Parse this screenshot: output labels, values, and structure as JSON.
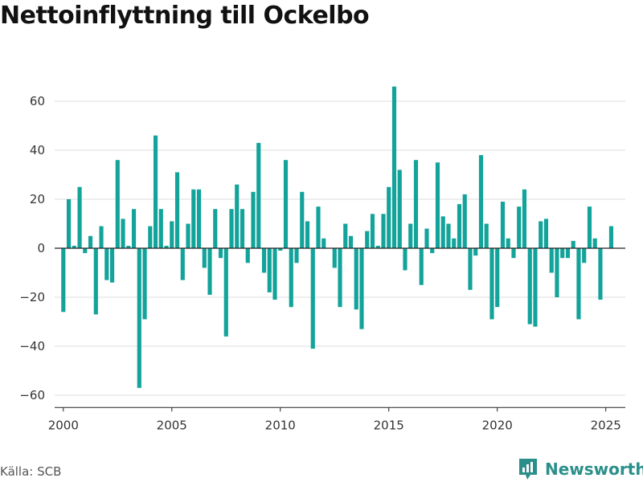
{
  "title": "Nettoinflyttning till Ockelbo",
  "source": "Källa: SCB",
  "brand": "Newsworthy",
  "colors": {
    "bar": "#12a39a",
    "grid": "#dddddd",
    "zero": "#222222",
    "brand": "#2a8f8a"
  },
  "chart_data": {
    "type": "bar",
    "title": "Nettoinflyttning till Ockelbo",
    "xlabel": "",
    "ylabel": "",
    "ylim": [
      -65,
      72
    ],
    "xlim": [
      1999.6,
      2025.9
    ],
    "yticks": [
      -60,
      -40,
      -20,
      0,
      20,
      40,
      60
    ],
    "ytick_labels": [
      "−60",
      "−40",
      "−20",
      "0",
      "20",
      "40",
      "60"
    ],
    "xticks": [
      2000,
      2005,
      2010,
      2015,
      2020,
      2025
    ],
    "xtick_labels": [
      "2000",
      "2005",
      "2010",
      "2015",
      "2020",
      "2025"
    ],
    "grid": true,
    "series": [
      {
        "x": [
          2000.0,
          2000.25,
          2000.5,
          2000.75,
          2001.0,
          2001.25,
          2001.5,
          2001.75,
          2002.0,
          2002.25,
          2002.5,
          2002.75,
          2003.0,
          2003.25,
          2003.5,
          2003.75,
          2004.0,
          2004.25,
          2004.5,
          2004.75,
          2005.0,
          2005.25,
          2005.5,
          2005.75,
          2006.0,
          2006.25,
          2006.5,
          2006.75,
          2007.0,
          2007.25,
          2007.5,
          2007.75,
          2008.0,
          2008.25,
          2008.5,
          2008.75,
          2009.0,
          2009.25,
          2009.5,
          2009.75,
          2010.0,
          2010.25,
          2010.5,
          2010.75,
          2011.0,
          2011.25,
          2011.5,
          2011.75,
          2012.0,
          2012.25,
          2012.5,
          2012.75,
          2013.0,
          2013.25,
          2013.5,
          2013.75,
          2014.0,
          2014.25,
          2014.5,
          2014.75,
          2015.0,
          2015.25,
          2015.5,
          2015.75,
          2016.0,
          2016.25,
          2016.5,
          2016.75,
          2017.0,
          2017.25,
          2017.5,
          2017.75,
          2018.0,
          2018.25,
          2018.5,
          2018.75,
          2019.0,
          2019.25,
          2019.5,
          2019.75,
          2020.0,
          2020.25,
          2020.5,
          2020.75,
          2021.0,
          2021.25,
          2021.5,
          2021.75,
          2022.0,
          2022.25,
          2022.5,
          2022.75,
          2023.0,
          2023.25,
          2023.5,
          2023.75,
          2024.0,
          2024.25,
          2024.5,
          2024.75,
          2025.0,
          2025.25
        ],
        "values": [
          -26,
          20,
          1,
          25,
          -2,
          5,
          -27,
          9,
          -13,
          -14,
          36,
          12,
          1,
          16,
          -57,
          -29,
          9,
          46,
          16,
          1,
          11,
          31,
          -13,
          10,
          24,
          24,
          -8,
          -19,
          16,
          -4,
          -36,
          16,
          26,
          16,
          -6,
          23,
          43,
          -10,
          -18,
          -21,
          -1,
          36,
          -24,
          -6,
          23,
          11,
          -41,
          17,
          4,
          0,
          -8,
          -24,
          10,
          5,
          -25,
          -33,
          7,
          14,
          1,
          14,
          25,
          66,
          32,
          -9,
          10,
          36,
          -15,
          8,
          -2,
          35,
          13,
          10,
          4,
          18,
          22,
          -17,
          -3,
          38,
          10,
          -29,
          -24,
          19,
          4,
          -4,
          17,
          24,
          -31,
          -32,
          11,
          12,
          -10,
          -20,
          -4,
          -4,
          3,
          -29,
          -6,
          17,
          4,
          -21,
          0,
          9
        ]
      }
    ]
  }
}
